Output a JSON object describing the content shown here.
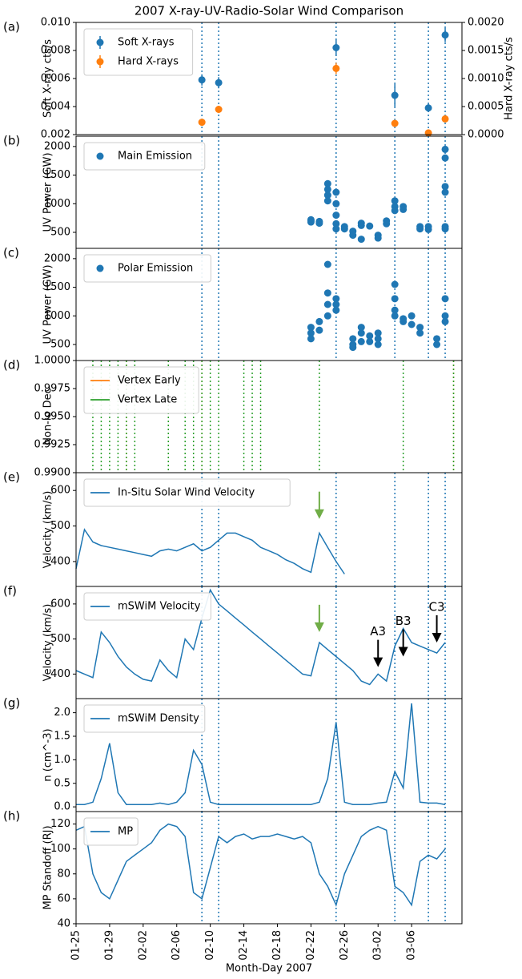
{
  "chart_data": [
    {
      "label": "(a)",
      "type": "errorbar",
      "title": "2007 X-ray-UV-Radio-Solar Wind Comparison",
      "ylabel": "Soft X-ray cts/s",
      "y2label": "Hard X-ray cts/s",
      "xlim": [
        "01-25",
        "03-12"
      ],
      "ylim": [
        0.002,
        0.01
      ],
      "yticks": [
        0.002,
        0.004,
        0.006,
        0.008,
        {
          "value": 0.01,
          "label": "0.010"
        }
      ],
      "y2lim": [
        0,
        0.002
      ],
      "y2ticks": [
        {
          "value": 0,
          "label": "0.0000"
        },
        {
          "value": 0.0005,
          "label": "0.0005"
        },
        {
          "value": 0.001,
          "label": "0.0010"
        },
        {
          "value": 0.0015,
          "label": "0.0015"
        },
        {
          "value": 0.002,
          "label": "0.0020"
        }
      ],
      "vlines": [
        "02-09",
        "02-11",
        "02-25",
        "03-04",
        "03-08",
        "03-10"
      ],
      "series": [
        {
          "name": "Soft X-rays",
          "color": "#1f77b4",
          "x": [
            "02-09",
            "02-11",
            "02-25",
            "03-04",
            "03-08",
            "03-10"
          ],
          "values": [
            0.0059,
            0.0057,
            0.0082,
            0.0048,
            0.0039,
            0.0091
          ],
          "errors": [
            0.0004,
            0.0004,
            0.0006,
            0.0008,
            0.0003,
            0.0005
          ]
        },
        {
          "name": "Hard X-rays",
          "color": "#ff7f0e",
          "axis": "y2",
          "x": [
            "02-09",
            "02-11",
            "02-25",
            "03-04",
            "03-08",
            "03-10"
          ],
          "values": [
            0.00022,
            0.00045,
            0.00118,
            0.0002,
            3e-05,
            0.00028
          ],
          "errors": [
            6e-05,
            6e-05,
            0.0001,
            5e-05,
            3e-05,
            4e-05
          ]
        }
      ]
    },
    {
      "label": "(b)",
      "type": "scatter",
      "ylabel": "UV Power (GW)",
      "xlim": [
        "01-25",
        "03-12"
      ],
      "ylim": [
        220,
        2180
      ],
      "yticks": [
        500,
        1000,
        1500,
        2000
      ],
      "vlines": [
        "02-09",
        "02-11",
        "02-25",
        "03-04",
        "03-08",
        "03-10"
      ],
      "series": [
        {
          "name": "Main Emission",
          "color": "#1f77b4",
          "x": [
            "02-22",
            "02-22",
            "02-22",
            "02-23",
            "02-23",
            "02-24",
            "02-24",
            "02-24",
            "02-24",
            "02-25",
            "02-25",
            "02-25",
            "02-25",
            "02-25",
            "02-26",
            "02-26",
            "02-27",
            "02-27",
            "02-28",
            "02-28",
            "02-28",
            "03-01",
            "03-02",
            "03-02",
            "03-03",
            "03-03",
            "03-04",
            "03-04",
            "03-04",
            "03-05",
            "03-05",
            "03-07",
            "03-07",
            "03-08",
            "03-08",
            "03-10",
            "03-10",
            "03-10",
            "03-10",
            "03-10",
            "03-10"
          ],
          "values": [
            700,
            720,
            680,
            690,
            660,
            1350,
            1250,
            1150,
            1050,
            1200,
            1000,
            800,
            650,
            560,
            560,
            600,
            520,
            450,
            660,
            620,
            380,
            610,
            450,
            400,
            650,
            700,
            1050,
            950,
            880,
            900,
            950,
            600,
            560,
            550,
            600,
            600,
            560,
            1300,
            1200,
            1800,
            1950
          ]
        }
      ]
    },
    {
      "label": "(c)",
      "type": "scatter",
      "ylabel": "UV Power (GW)",
      "xlim": [
        "01-25",
        "03-12"
      ],
      "ylim": [
        220,
        2180
      ],
      "yticks": [
        500,
        1000,
        1500,
        2000
      ],
      "vlines": [
        "02-09",
        "02-11",
        "02-25",
        "03-04",
        "03-08",
        "03-10"
      ],
      "series": [
        {
          "name": "Polar Emission",
          "color": "#1f77b4",
          "x": [
            "02-22",
            "02-22",
            "02-22",
            "02-23",
            "02-23",
            "02-24",
            "02-24",
            "02-24",
            "02-24",
            "02-25",
            "02-25",
            "02-25",
            "02-27",
            "02-27",
            "02-27",
            "02-28",
            "02-28",
            "02-28",
            "03-01",
            "03-01",
            "03-02",
            "03-02",
            "03-02",
            "03-04",
            "03-04",
            "03-04",
            "03-04",
            "03-05",
            "03-05",
            "03-06",
            "03-06",
            "03-07",
            "03-07",
            "03-09",
            "03-09",
            "03-10",
            "03-10",
            "03-10"
          ],
          "values": [
            600,
            700,
            800,
            750,
            900,
            1900,
            1400,
            1200,
            1000,
            1300,
            1200,
            1100,
            450,
            500,
            600,
            550,
            700,
            800,
            650,
            550,
            700,
            500,
            600,
            1550,
            1300,
            1100,
            1000,
            950,
            900,
            1000,
            850,
            700,
            800,
            500,
            600,
            1300,
            1000,
            900
          ]
        }
      ]
    },
    {
      "label": "(d)",
      "type": "vline",
      "ylabel": "Non-lo Dec",
      "xlim": [
        "01-25",
        "03-12"
      ],
      "ylim": [
        0.99,
        1
      ],
      "yticks": [
        {
          "value": 0.99,
          "label": "0.9900"
        },
        0.9925,
        {
          "value": 0.995,
          "label": "0.9950"
        },
        0.9975,
        {
          "value": 1,
          "label": "1.0000"
        }
      ],
      "series": [
        {
          "name": "Vertex Early",
          "color": "#ff7f0e",
          "x": [
            "01-31",
            "02-05",
            "02-09",
            "03-11"
          ]
        },
        {
          "name": "Vertex Late",
          "color": "#2ca02c",
          "x": [
            "01-27",
            "01-28",
            "01-29",
            "01-30",
            "01-31",
            "02-01",
            "02-05",
            "02-07",
            "02-08",
            "02-09",
            "02-10",
            "02-11",
            "02-14",
            "02-15",
            "02-16",
            "02-23",
            "03-05",
            "03-11"
          ]
        }
      ]
    },
    {
      "label": "(e)",
      "type": "line",
      "ylabel": "Velocity (km/s)",
      "xlim": [
        "01-25",
        "03-12"
      ],
      "ylim": [
        330,
        650
      ],
      "yticks": [
        400,
        500,
        600
      ],
      "vlines": [
        "02-09",
        "02-11",
        "02-25",
        "03-04",
        "03-08",
        "03-10"
      ],
      "x": [
        "01-25",
        "01-26",
        "01-27",
        "01-28",
        "01-29",
        "01-30",
        "01-31",
        "02-01",
        "02-02",
        "02-03",
        "02-04",
        "02-05",
        "02-06",
        "02-07",
        "02-08",
        "02-09",
        "02-10",
        "02-11",
        "02-12",
        "02-13",
        "02-14",
        "02-15",
        "02-16",
        "02-17",
        "02-18",
        "02-19",
        "02-20",
        "02-21",
        "02-22",
        "02-23",
        "02-24",
        "02-25",
        "02-26"
      ],
      "series": [
        {
          "name": "In-Situ Solar Wind Velocity",
          "color": "#1f77b4",
          "values": [
            380,
            490,
            455,
            445,
            440,
            435,
            430,
            425,
            420,
            415,
            430,
            435,
            430,
            440,
            450,
            430,
            440,
            460,
            480,
            480,
            470,
            460,
            440,
            430,
            420,
            405,
            395,
            380,
            370,
            480,
            440,
            400,
            365
          ]
        }
      ],
      "annotations": [
        {
          "x": "02-23",
          "y": 520,
          "color": "#70ad47"
        }
      ]
    },
    {
      "label": "(f)",
      "type": "line",
      "ylabel": "Velocity (km/s)",
      "xlim": [
        "01-25",
        "03-12"
      ],
      "ylim": [
        330,
        650
      ],
      "yticks": [
        400,
        500,
        600
      ],
      "vlines": [
        "02-09",
        "02-11",
        "02-25",
        "03-04",
        "03-08",
        "03-10"
      ],
      "x": [
        "01-25",
        "01-26",
        "01-27",
        "01-28",
        "01-29",
        "01-30",
        "01-31",
        "02-01",
        "02-02",
        "02-03",
        "02-04",
        "02-05",
        "02-06",
        "02-07",
        "02-08",
        "02-09",
        "02-10",
        "02-11",
        "02-12",
        "02-13",
        "02-14",
        "02-15",
        "02-16",
        "02-17",
        "02-18",
        "02-19",
        "02-20",
        "02-21",
        "02-22",
        "02-23",
        "02-24",
        "02-25",
        "02-26",
        "02-27",
        "02-28",
        "03-01",
        "03-02",
        "03-03",
        "03-04",
        "03-05",
        "03-06",
        "03-07",
        "03-08",
        "03-09",
        "03-10"
      ],
      "series": [
        {
          "name": "mSWiM Velocity",
          "color": "#1f77b4",
          "values": [
            410,
            400,
            390,
            520,
            490,
            450,
            420,
            400,
            385,
            380,
            440,
            410,
            390,
            500,
            470,
            560,
            640,
            600,
            580,
            560,
            540,
            520,
            500,
            480,
            460,
            440,
            420,
            400,
            395,
            490,
            470,
            450,
            430,
            410,
            380,
            370,
            400,
            380,
            480,
            530,
            490,
            480,
            470,
            460,
            490
          ]
        }
      ],
      "annotations": [
        {
          "x": "02-23",
          "y": 520,
          "color": "#70ad47"
        },
        {
          "text": "A3",
          "x": "03-02",
          "y": 420,
          "color": "#000000"
        },
        {
          "text": "B3",
          "x": "03-05",
          "y": 450,
          "color": "#000000"
        },
        {
          "text": "C3",
          "x": "03-09",
          "y": 490,
          "color": "#000000"
        }
      ]
    },
    {
      "label": "(g)",
      "type": "line",
      "ylabel": "n (cm^-3)",
      "xlim": [
        "01-25",
        "03-12"
      ],
      "ylim": [
        -0.1,
        2.3
      ],
      "yticks": [
        {
          "value": 0,
          "label": "0.0"
        },
        0.5,
        {
          "value": 1,
          "label": "1.0"
        },
        1.5,
        {
          "value": 2,
          "label": "2.0"
        }
      ],
      "vlines": [
        "02-09",
        "02-11",
        "02-25",
        "03-04",
        "03-08",
        "03-10"
      ],
      "x": [
        "01-25",
        "01-26",
        "01-27",
        "01-28",
        "01-29",
        "01-30",
        "01-31",
        "02-01",
        "02-02",
        "02-03",
        "02-04",
        "02-05",
        "02-06",
        "02-07",
        "02-08",
        "02-09",
        "02-10",
        "02-11",
        "02-12",
        "02-13",
        "02-14",
        "02-15",
        "02-16",
        "02-17",
        "02-18",
        "02-19",
        "02-20",
        "02-21",
        "02-22",
        "02-23",
        "02-24",
        "02-25",
        "02-26",
        "02-27",
        "02-28",
        "03-01",
        "03-02",
        "03-03",
        "03-04",
        "03-05",
        "03-06",
        "03-07",
        "03-08",
        "03-09",
        "03-10"
      ],
      "series": [
        {
          "name": "mSWiM Density",
          "color": "#1f77b4",
          "values": [
            0.05,
            0.05,
            0.1,
            0.6,
            1.35,
            0.3,
            0.05,
            0.05,
            0.05,
            0.05,
            0.08,
            0.05,
            0.1,
            0.3,
            1.2,
            0.9,
            0.1,
            0.05,
            0.05,
            0.05,
            0.05,
            0.05,
            0.05,
            0.05,
            0.05,
            0.05,
            0.05,
            0.05,
            0.05,
            0.1,
            0.6,
            1.8,
            0.1,
            0.05,
            0.05,
            0.05,
            0.08,
            0.1,
            0.75,
            0.4,
            2.2,
            0.1,
            0.08,
            0.08,
            0.05
          ]
        }
      ]
    },
    {
      "label": "(h)",
      "type": "line",
      "ylabel": "MP Standoff (RJ)",
      "xlabel": "Month-Day 2007",
      "xlim": [
        "01-25",
        "03-12"
      ],
      "ylim": [
        40,
        130
      ],
      "yticks": [
        40,
        60,
        80,
        100,
        120
      ],
      "xticks": [
        "01-25",
        "01-29",
        "02-02",
        "02-06",
        "02-10",
        "02-14",
        "02-18",
        "02-22",
        "02-26",
        "03-02",
        "03-06"
      ],
      "vlines": [
        "02-09",
        "02-11",
        "02-25",
        "03-04",
        "03-08",
        "03-10"
      ],
      "x": [
        "01-25",
        "01-26",
        "01-27",
        "01-28",
        "01-29",
        "01-30",
        "01-31",
        "02-01",
        "02-02",
        "02-03",
        "02-04",
        "02-05",
        "02-06",
        "02-07",
        "02-08",
        "02-09",
        "02-10",
        "02-11",
        "02-12",
        "02-13",
        "02-14",
        "02-15",
        "02-16",
        "02-17",
        "02-18",
        "02-19",
        "02-20",
        "02-21",
        "02-22",
        "02-23",
        "02-24",
        "02-25",
        "02-26",
        "02-27",
        "02-28",
        "03-01",
        "03-02",
        "03-03",
        "03-04",
        "03-05",
        "03-06",
        "03-07",
        "03-08",
        "03-09",
        "03-10"
      ],
      "series": [
        {
          "name": "MP",
          "color": "#1f77b4",
          "values": [
            115,
            118,
            80,
            65,
            60,
            75,
            90,
            95,
            100,
            105,
            115,
            120,
            118,
            110,
            65,
            60,
            85,
            110,
            105,
            110,
            112,
            108,
            110,
            110,
            112,
            110,
            108,
            110,
            105,
            80,
            70,
            55,
            80,
            95,
            110,
            115,
            118,
            115,
            70,
            65,
            55,
            90,
            95,
            92,
            100
          ]
        }
      ]
    }
  ]
}
